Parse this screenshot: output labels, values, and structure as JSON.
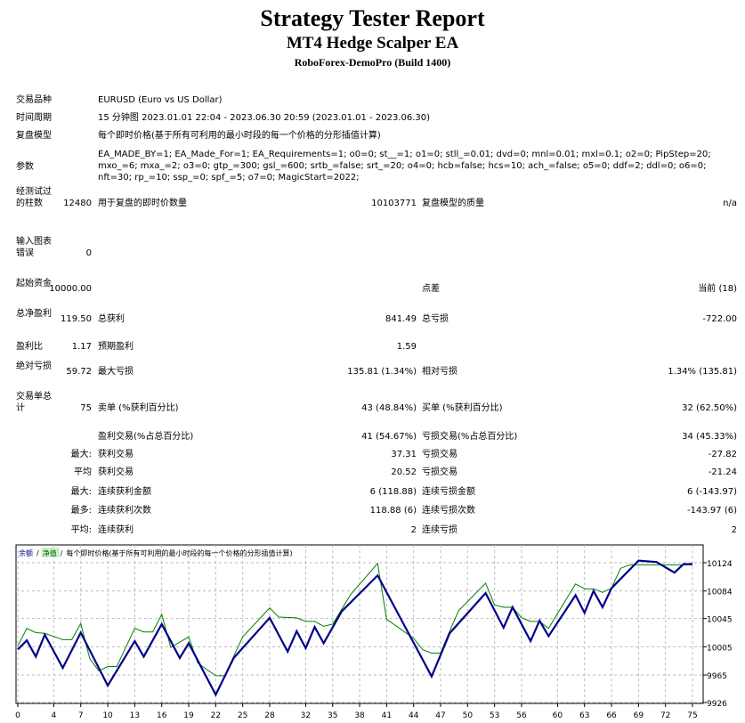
{
  "header": {
    "title": "Strategy Tester Report",
    "ea": "MT4 Hedge Scalper EA",
    "server": "RoboForex-DemoPro (Build 1400)"
  },
  "info": {
    "symbol_label": "交易品种",
    "symbol": "EURUSD (Euro vs US Dollar)",
    "period_label": "时间周期",
    "period": "15 分钟图 2023.01.01 22:04 - 2023.06.30 20:59 (2023.01.01 - 2023.06.30)",
    "model_label": "复盘模型",
    "model": "每个即时价格(基于所有可利用的最小时段的每一个价格的分形插值计算)",
    "params_label": "参数",
    "params": "EA_MADE_BY=1; EA_Made_For=1; EA_Requirements=1; o0=0; st__=1; o1=0; stll_=0.01; dvd=0; mnl=0.01; mxl=0.1; o2=0; PipStep=20; mxo_=6; mxa_=2; o3=0; gtp_=300; gsl_=600; srtb_=false; srt_=20; o4=0; hcb=false; hcs=10; ach_=false; o5=0; ddf=2; ddl=0; o6=0; nft=30; rp_=10; ssp_=0; spf_=5; o7=0; MagicStart=2022;"
  },
  "stats": [
    {
      "l1": "经测试过的柱数",
      "v1": "12480",
      "l2": "用于复盘的即时价数量",
      "v2": "10103771",
      "l3": "复盘模型的质量",
      "v3": "n/a"
    },
    {
      "l1": "输入图表错误",
      "v1": "0",
      "l2": "",
      "v2": "",
      "l3": "",
      "v3": ""
    },
    {
      "l1": "起始资金",
      "v1": "10000.00",
      "l2": "",
      "v2": "",
      "l3": "点差",
      "v3": "当前 (18)"
    },
    {
      "l1": "总净盈利",
      "v1": "119.50",
      "l2": "总获利",
      "v2": "841.49",
      "l3": "总亏损",
      "v3": "-722.00"
    },
    {
      "l1": "盈利比",
      "v1": "1.17",
      "l2": "预期盈利",
      "v2": "1.59",
      "l3": "",
      "v3": ""
    },
    {
      "l1": "绝对亏损",
      "v1": "59.72",
      "l2": "最大亏损",
      "v2": "135.81 (1.34%)",
      "l3": "相对亏损",
      "v3": "1.34% (135.81)"
    },
    {
      "l1": "交易单总计",
      "v1": "75",
      "l2": "卖单 (%获利百分比)",
      "v2": "43 (48.84%)",
      "l3": "买单 (%获利百分比)",
      "v3": "32 (62.50%)"
    },
    {
      "l1": "",
      "v1": "",
      "l2": "盈利交易(%占总百分比)",
      "v2": "41 (54.67%)",
      "l3": "亏损交易(%占总百分比)",
      "v3": "34 (45.33%)"
    },
    {
      "l1": "",
      "v1": "最大:",
      "l2": "获利交易",
      "v2": "37.31",
      "l3": "亏损交易",
      "v3": "-27.82"
    },
    {
      "l1": "",
      "v1": "平均",
      "l2": "获利交易",
      "v2": "20.52",
      "l3": "亏损交易",
      "v3": "-21.24"
    },
    {
      "l1": "",
      "v1": "最大:",
      "l2": "连续获利金额",
      "v2": "6 (118.88)",
      "l3": "连续亏损金额",
      "v3": "6 (-143.97)"
    },
    {
      "l1": "",
      "v1": "最多:",
      "l2": "连续获利次数",
      "v2": "118.88 (6)",
      "l3": "连续亏损次数",
      "v3": "-143.97 (6)"
    },
    {
      "l1": "",
      "v1": "平均:",
      "l2": "连续获利",
      "v2": "2",
      "l3": "连续亏损",
      "v3": "2"
    }
  ],
  "chart_data": {
    "type": "line",
    "legend": {
      "balance": "余额",
      "sep": "/",
      "equity": "净值",
      "model": "每个即时价格(基于所有可利用的最小时段的每一个价格的分形插值计算)"
    },
    "xticks": [
      0,
      4,
      7,
      10,
      13,
      16,
      19,
      22,
      25,
      28,
      32,
      35,
      38,
      41,
      44,
      47,
      50,
      53,
      56,
      60,
      63,
      66,
      69,
      72,
      75
    ],
    "yticks": [
      9926,
      9965,
      10005,
      10045,
      10084,
      10124
    ],
    "xlim": [
      0,
      75
    ],
    "ylim": [
      9926,
      10135
    ],
    "grid": true,
    "colors": {
      "balance": "#00008b",
      "equity": "#008000"
    },
    "series": [
      {
        "name": "余额",
        "points": [
          [
            0,
            10001
          ],
          [
            1,
            10014
          ],
          [
            2,
            9991
          ],
          [
            3,
            10022
          ],
          [
            5,
            9975
          ],
          [
            7,
            10025
          ],
          [
            10,
            9950
          ],
          [
            13,
            10013
          ],
          [
            14,
            9991
          ],
          [
            16,
            10037
          ],
          [
            18,
            9989
          ],
          [
            19,
            10010
          ],
          [
            22,
            9937
          ],
          [
            24,
            9989
          ],
          [
            28,
            10046
          ],
          [
            30,
            9998
          ],
          [
            31,
            10027
          ],
          [
            32,
            10003
          ],
          [
            33,
            10033
          ],
          [
            34,
            10010
          ],
          [
            36,
            10055
          ],
          [
            40,
            10106
          ],
          [
            46,
            9963
          ],
          [
            48,
            10024
          ],
          [
            52,
            10081
          ],
          [
            54,
            10032
          ],
          [
            55,
            10061
          ],
          [
            57,
            10013
          ],
          [
            58,
            10042
          ],
          [
            59,
            10020
          ],
          [
            62,
            10078
          ],
          [
            63,
            10053
          ],
          [
            64,
            10084
          ],
          [
            65,
            10061
          ],
          [
            66,
            10088
          ],
          [
            69,
            10127
          ],
          [
            71,
            10125
          ],
          [
            73,
            10110
          ],
          [
            74,
            10122
          ],
          [
            75,
            10122
          ]
        ]
      },
      {
        "name": "净值",
        "points": [
          [
            0,
            10006
          ],
          [
            1,
            10031
          ],
          [
            2,
            10025
          ],
          [
            3,
            10024
          ],
          [
            5,
            10015
          ],
          [
            6,
            10015
          ],
          [
            7,
            10038
          ],
          [
            8,
            9988
          ],
          [
            9,
            9971
          ],
          [
            10,
            9977
          ],
          [
            11,
            9977
          ],
          [
            13,
            10031
          ],
          [
            14,
            10026
          ],
          [
            15,
            10026
          ],
          [
            16,
            10051
          ],
          [
            17,
            10004
          ],
          [
            19,
            10019
          ],
          [
            20,
            9982
          ],
          [
            22,
            9964
          ],
          [
            23,
            9964
          ],
          [
            25,
            10019
          ],
          [
            28,
            10060
          ],
          [
            29,
            10047
          ],
          [
            31,
            10046
          ],
          [
            32,
            10041
          ],
          [
            33,
            10041
          ],
          [
            34,
            10034
          ],
          [
            35,
            10037
          ],
          [
            37,
            10079
          ],
          [
            40,
            10123
          ],
          [
            41,
            10044
          ],
          [
            44,
            10017
          ],
          [
            45,
            10001
          ],
          [
            46,
            9996
          ],
          [
            47,
            9996
          ],
          [
            48,
            10027
          ],
          [
            49,
            10056
          ],
          [
            52,
            10095
          ],
          [
            53,
            10064
          ],
          [
            54,
            10061
          ],
          [
            55,
            10061
          ],
          [
            56,
            10046
          ],
          [
            57,
            10041
          ],
          [
            58,
            10041
          ],
          [
            59,
            10031
          ],
          [
            62,
            10094
          ],
          [
            63,
            10087
          ],
          [
            64,
            10087
          ],
          [
            65,
            10082
          ],
          [
            66,
            10088
          ],
          [
            67,
            10116
          ],
          [
            68,
            10121
          ],
          [
            75,
            10121
          ]
        ]
      }
    ]
  }
}
